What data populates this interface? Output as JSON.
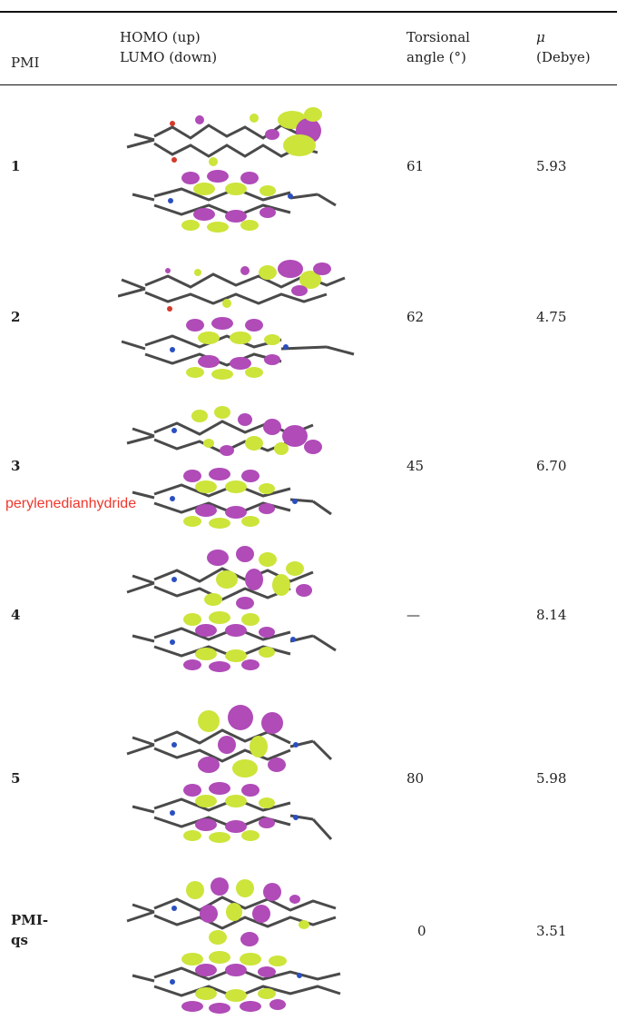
{
  "header": {
    "col_pmi": "PMI",
    "col_orbital_line1": "HOMO (up)",
    "col_orbital_line2": "LUMO (down)",
    "col_torsion_line1": "Torsional",
    "col_torsion_line2": "angle (°)",
    "col_mu_line1": "μ",
    "col_mu_line2": "(Debye)"
  },
  "rows": [
    {
      "label": "1",
      "torsion": "61",
      "mu": "5.93"
    },
    {
      "label": "2",
      "torsion": "62",
      "mu": "4.75"
    },
    {
      "label": "3",
      "torsion": "45",
      "mu": "6.70"
    },
    {
      "label": "4",
      "torsion": "—",
      "mu": "8.14"
    },
    {
      "label": "5",
      "torsion": "80",
      "mu": "5.98"
    },
    {
      "label_line1": "PMI-",
      "label_line2": "qs",
      "torsion": "0",
      "mu": "3.51"
    }
  ],
  "annotation": "perylenedianhydride",
  "colors": {
    "lobe_magenta": "#b04bb8",
    "lobe_yellow": "#cde43a",
    "carbon": "#4a4a4a",
    "nitrogen": "#2a4fc0",
    "oxygen": "#d43a2a"
  }
}
